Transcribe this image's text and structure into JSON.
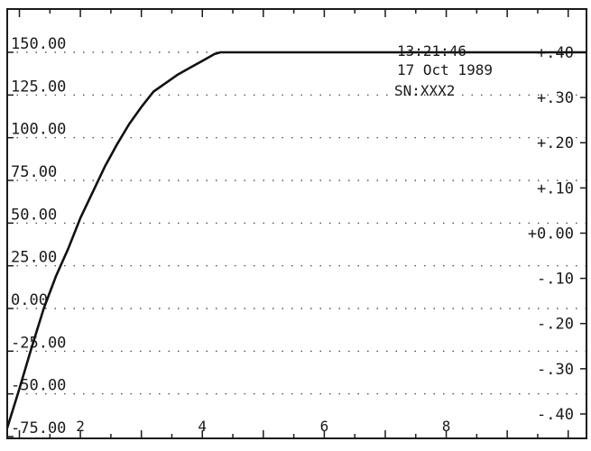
{
  "chart_data": {
    "type": "line",
    "title": "",
    "xlabel": "",
    "ylabel": "",
    "x_ticks": [
      "2",
      "4",
      "6",
      "8"
    ],
    "xlim": [
      0.8,
      10.3
    ],
    "left_axis": {
      "ticks": [
        "150.00",
        "125.00",
        "100.00",
        "75.00",
        "50.00",
        "25.00",
        "0.00",
        "-25.00",
        "-50.00",
        "-75.00"
      ],
      "ylim": [
        -75,
        150
      ]
    },
    "right_axis": {
      "ticks": [
        "+.40",
        "+.30",
        "+.20",
        "+.10",
        "+0.00",
        "-.10",
        "-.20",
        "-.30",
        "-.40"
      ],
      "ylim": [
        -0.45,
        0.4
      ]
    },
    "grid": "dotted-horizontal",
    "series": [
      {
        "axis": "left",
        "x": [
          0.8,
          1.0,
          1.2,
          1.4,
          1.6,
          1.8,
          2.0,
          2.2,
          2.4,
          2.6,
          2.8,
          3.0,
          3.2,
          3.4,
          3.6,
          3.8,
          4.0,
          4.2,
          4.3,
          5.0,
          6.0,
          7.0,
          8.0,
          9.0,
          10.0,
          10.3
        ],
        "y": [
          -70,
          -47,
          -23,
          0,
          19,
          35,
          53,
          68,
          83,
          96,
          108,
          118,
          127,
          132,
          137,
          141,
          145,
          149,
          150,
          150,
          150,
          150,
          150,
          150,
          150,
          150
        ]
      }
    ],
    "annotations": {
      "time": "13:21:46",
      "date": "17 Oct 1989",
      "serial": "SN:XXX2"
    }
  }
}
